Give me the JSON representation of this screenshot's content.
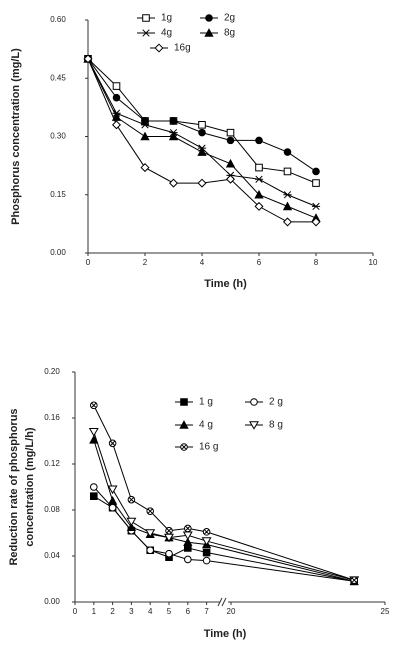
{
  "chart_data": [
    {
      "type": "line",
      "xlabel": "Time (h)",
      "ylabel": "Phosphorus concentration (mg/L)",
      "x": [
        0,
        1,
        2,
        3,
        4,
        5,
        6,
        7,
        8
      ],
      "xlim": [
        0,
        10
      ],
      "xticks": [
        0,
        2,
        4,
        6,
        8,
        10
      ],
      "ylim": [
        0,
        0.6
      ],
      "yticks": [
        {
          "value": 0,
          "label": "0.00"
        },
        0.15,
        {
          "value": 0.3,
          "label": "0.30"
        },
        0.45,
        {
          "value": 0.6,
          "label": "0.60"
        }
      ],
      "series": [
        {
          "name": "1g",
          "color": "#000000",
          "marker": "square-open",
          "values": [
            0.5,
            0.43,
            0.34,
            0.34,
            0.33,
            0.31,
            0.22,
            0.21,
            0.18
          ]
        },
        {
          "name": "2g",
          "color": "#000000",
          "marker": "circle-filled",
          "values": [
            0.5,
            0.4,
            0.34,
            0.34,
            0.31,
            0.29,
            0.29,
            0.26,
            0.21
          ]
        },
        {
          "name": "4g",
          "color": "#000000",
          "marker": "star",
          "values": [
            0.5,
            0.36,
            0.33,
            0.31,
            0.27,
            0.2,
            0.19,
            0.15,
            0.12
          ]
        },
        {
          "name": "8g",
          "color": "#000000",
          "marker": "triangle-filled",
          "values": [
            0.5,
            0.35,
            0.3,
            0.3,
            0.26,
            0.23,
            0.15,
            0.12,
            0.09
          ]
        },
        {
          "name": "16g",
          "color": "#000000",
          "marker": "diamond-open",
          "values": [
            0.5,
            0.33,
            0.22,
            0.18,
            0.18,
            0.19,
            0.12,
            0.08,
            0.08
          ]
        }
      ]
    },
    {
      "type": "line",
      "xlabel": "Time (h)",
      "ylabel": [
        "Reduction rate of phosphorus",
        "concentration (mg/L/h)"
      ],
      "x": [
        1,
        2,
        3,
        4,
        5,
        6,
        7,
        24
      ],
      "xlim": [
        0,
        25
      ],
      "xbreak": [
        7.5,
        20
      ],
      "xticks": [
        0,
        1,
        2,
        3,
        4,
        5,
        6,
        7,
        20,
        25
      ],
      "ylim": [
        0,
        0.2
      ],
      "yticks": [
        {
          "value": 0,
          "label": "0.00"
        },
        0.04,
        0.08,
        0.12,
        0.16,
        {
          "value": 0.2,
          "label": "0.20"
        }
      ],
      "series": [
        {
          "name": "1 g",
          "color": "#000000",
          "marker": "square-filled",
          "values": [
            0.092,
            0.082,
            0.062,
            0.045,
            0.039,
            0.047,
            0.043,
            0.018
          ]
        },
        {
          "name": "2 g",
          "color": "#000000",
          "marker": "circle-open",
          "values": [
            0.1,
            0.082,
            0.062,
            0.045,
            0.042,
            0.037,
            0.036,
            0.018
          ]
        },
        {
          "name": "4 g",
          "color": "#000000",
          "marker": "triangle-filled",
          "values": [
            0.141,
            0.088,
            0.065,
            0.059,
            0.056,
            0.052,
            0.05,
            0.018
          ]
        },
        {
          "name": "8 g",
          "color": "#000000",
          "marker": "triangle-down-open",
          "values": [
            0.148,
            0.098,
            0.07,
            0.06,
            0.056,
            0.058,
            0.053,
            0.019
          ]
        },
        {
          "name": "16 g",
          "color": "#000000",
          "marker": "circle-x",
          "values": [
            0.171,
            0.138,
            0.089,
            0.079,
            0.062,
            0.064,
            0.061,
            0.019
          ]
        }
      ]
    }
  ]
}
